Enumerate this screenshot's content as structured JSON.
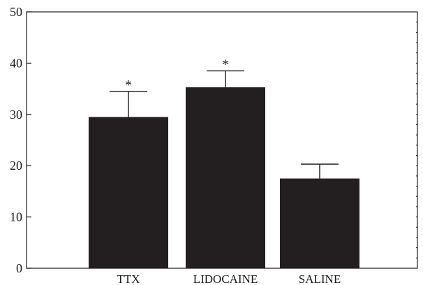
{
  "chart_data": {
    "type": "bar",
    "title": "",
    "xlabel": "",
    "ylabel": "",
    "categories": [
      "TTX",
      "LIDOCAINE",
      "SALINE"
    ],
    "values": [
      29.5,
      35.3,
      17.5
    ],
    "errors": [
      5.0,
      3.2,
      2.8
    ],
    "significance": [
      "*",
      "*",
      ""
    ],
    "ylim": [
      0,
      50
    ],
    "yticks": [
      0,
      10,
      20,
      30,
      40,
      50
    ],
    "grid": false,
    "legend": "none",
    "bar_color": "#231f20",
    "axis_color": "#1a1a1a"
  }
}
